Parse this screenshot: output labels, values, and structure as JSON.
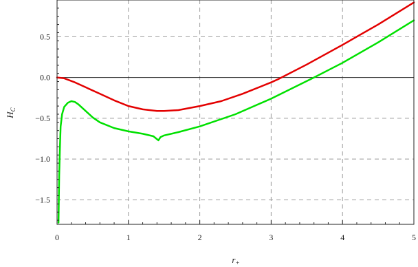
{
  "chart_data": {
    "type": "line",
    "xlabel": "r",
    "xlabel_sub": "+",
    "ylabel": "H",
    "ylabel_sub": "C",
    "xlim": [
      0,
      5
    ],
    "ylim": [
      -1.8,
      0.95
    ],
    "grid": true,
    "grid_style": "dashed",
    "zero_line": true,
    "x_ticks": [
      0,
      1,
      2,
      3,
      4,
      5
    ],
    "x_tick_labels": [
      "0",
      "1",
      "2",
      "3",
      "4",
      "5"
    ],
    "y_ticks": [
      -1.5,
      -1.0,
      -0.5,
      0.0,
      0.5
    ],
    "y_tick_labels": [
      "−1.5",
      "−1.0",
      "−0.5",
      "0.0",
      "0.5"
    ],
    "series": [
      {
        "color": "#e30000",
        "x": [
          0,
          0.1,
          0.25,
          0.4,
          0.6,
          0.8,
          1.0,
          1.2,
          1.4,
          1.5,
          1.7,
          2.0,
          2.3,
          2.6,
          3.0,
          3.1,
          3.5,
          4.0,
          4.5,
          5.0
        ],
        "y": [
          0,
          -0.01,
          -0.06,
          -0.12,
          -0.2,
          -0.28,
          -0.35,
          -0.39,
          -0.41,
          -0.41,
          -0.4,
          -0.35,
          -0.29,
          -0.2,
          -0.06,
          -0.02,
          0.16,
          0.4,
          0.65,
          0.92
        ]
      },
      {
        "color": "#00e000",
        "x": [
          0.02,
          0.03,
          0.04,
          0.05,
          0.07,
          0.1,
          0.15,
          0.2,
          0.25,
          0.3,
          0.4,
          0.5,
          0.6,
          0.8,
          1.0,
          1.2,
          1.35,
          1.42,
          1.45,
          1.5,
          1.7,
          2.0,
          2.5,
          3.0,
          3.6,
          4.0,
          4.5,
          5.0
        ],
        "y": [
          -1.78,
          -1.2,
          -0.85,
          -0.6,
          -0.45,
          -0.36,
          -0.31,
          -0.29,
          -0.3,
          -0.33,
          -0.41,
          -0.49,
          -0.55,
          -0.62,
          -0.66,
          -0.69,
          -0.72,
          -0.77,
          -0.73,
          -0.71,
          -0.67,
          -0.6,
          -0.45,
          -0.26,
          0.0,
          0.18,
          0.43,
          0.7
        ]
      }
    ]
  }
}
